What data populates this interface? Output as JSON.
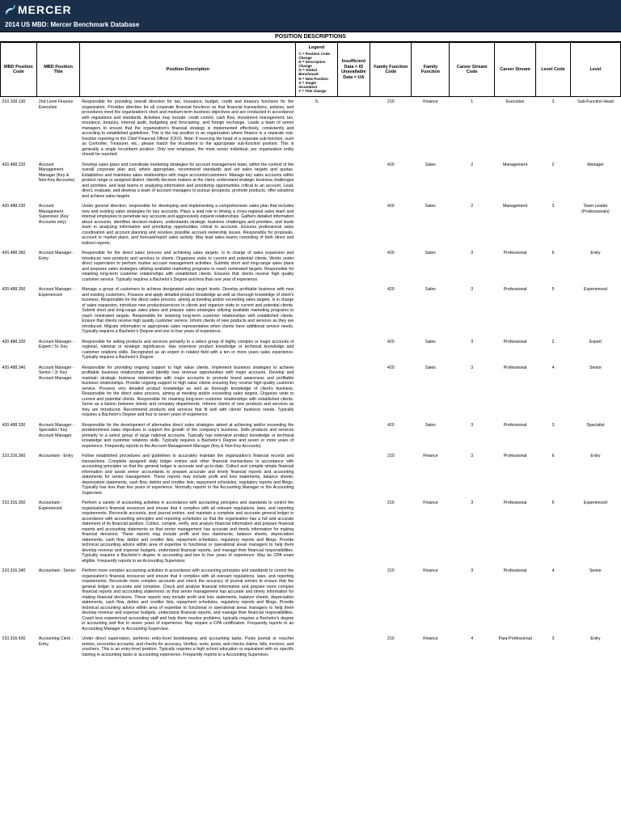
{
  "header": {
    "logo_text": "MERCER",
    "subtitle": "2014 US MBD: Mercer Benchmark Database"
  },
  "section_title": "POSITION DESCRIPTIONS",
  "columns": {
    "code": "MBD Position Code",
    "title": "MBD Position Title",
    "desc": "Position Description",
    "legend_title": "Legend",
    "legend_lines": [
      "C = Position Code Change",
      "D = Description Change",
      "G = Global Benchmark",
      "N = New Position",
      "S = Single Incumbent",
      "T = Title change"
    ],
    "insufficient": "Insufficient Data = ID Unavailable Data = UA",
    "fn_code": "Family Function Code",
    "fn": "Family Function",
    "stream_code": "Career Stream Code",
    "stream": "Career Stream",
    "level_code": "Level Code",
    "level": "Level"
  },
  "rows": [
    {
      "code": "210.100.130",
      "title": "2nd Level Finance Executive",
      "desc": "Responsible for providing overall direction for tax, insurance, budget, credit and treasury functions for the organization. Provides direction for all corporate financial functions so that financial transactions, policies, and procedures meet the organization's short and medium-term business objectives and are conducted in accordance with regulations and standards. Activities may include: credit control, cash flow, investment management, tax, insurance, treasury, internal audit, budgeting and forecasting, and foreign exchange. Leads a team of senior managers to ensure that the organization's financial strategy is implemented effectively, consistently and according to established guidelines. This is the top position in an organization where finance is a separate sub-function reporting to the Chief Financial Officer (CFO). Note: If sourcing the head of a separate sub-function, such as Controller, Treasurer, etc., please match the incumbent to the appropriate sub-function position. This is generally a single incumbent position. Only one employee, the most senior individual, per organization entity should be reported.",
      "legend": "S",
      "fn_code": "210",
      "fn": "Finance",
      "stream_code": "1",
      "stream": "Executive",
      "level_code": "3",
      "level": "Sub-Function Head"
    },
    {
      "code": "420.488.220",
      "title": "Account Management Manager (Key & Non-Key Accounts)",
      "desc": "Develop sales plans and coordinate marketing strategies for account management team, within the context of the overall corporate plan and, where appropriate, recommend standards and set sales targets and quotas. Establishes and maintains sales relationships with major accounts/customers. Manage key sales accounts within product range or assigned district. Identify decision makers at the client, understand strategic business challenges and priorities, and lead teams in analyzing information and prioritizing opportunities critical to an account. Lead, direct, evaluate, and develop a team of account managers to pursue prospects, promote products, offer solutions and achieve sales targets.",
      "legend": "",
      "fn_code": "420",
      "fn": "Sales",
      "stream_code": "2",
      "stream": "Management",
      "level_code": "2",
      "level": "Manager"
    },
    {
      "code": "420.488.230",
      "title": "Account Management Supervisor (Key Accounts only)",
      "desc": "Under general direction, responsible for developing and implementing a comprehensive sales plan that includes new and existing sales strategies for key accounts. Plays a lead role in driving a cross-regional sales team and internal employees to penetrate key accounts and aggressively expand relationships. Gathers detailed information about accounts, identifies decision-makers, understands strategic business challenges and priorities, and leads team in analyzing information and prioritizing opportunities critical to accounts. Ensures professional sales coordination and account planning and resolves possible account ownership issues. Responsible for proposals, account or market plans, and forecast/report sales activity. May lead sales teams consisting of both direct and indirect reports.",
      "legend": "",
      "fn_code": "420",
      "fn": "Sales",
      "stream_code": "2",
      "stream": "Management",
      "level_code": "3",
      "level": "Team Leader (Professionals)"
    },
    {
      "code": "420.488.360",
      "title": "Account Manager - Entry",
      "desc": "Responsible for the direct sales process and achieving sales targets. Is in charge of sales expansion and introduces new products and services to clients. Organizes visits to current and potential clients. Works under direct supervision to perform routine account management activities. Submits short and long-range sales plans and prepares sales strategies utilizing available marketing programs to reach nominated targets. Responsible for retaining long-term customer relationships with established clients. Ensures that clients receive high quality customer service. Typically requires a Bachelor's Degree and less than one year of experience.",
      "legend": "",
      "fn_code": "420",
      "fn": "Sales",
      "stream_code": "3",
      "stream": "Professional",
      "level_code": "6",
      "level": "Entry"
    },
    {
      "code": "420.488.350",
      "title": "Account Manager - Experienced",
      "desc": "Manage a group of customers to achieve designated sales target levels. Develop profitable business with new and existing customers. Possess and apply detailed product knowledge as well as thorough knowledge of client's business. Responsible for the direct sales process, aiming at meeting and/or exceeding sales targets. Is in charge of sales expansion, introduce new products/services to clients and organize visits to current and potential clients. Submit short and long-range sales plans and prepare sales strategies utilizing available marketing programs to reach nominated targets. Responsible for retaining long-term customer relationships with established clients. Ensure that clients receive high quality customer service. Inform clients of new products and services as they are introduced. Migrate information to appropriate sales representative when clients have additional service needs. Typically requires a Bachelor's Degree and one to four years of experience.",
      "legend": "",
      "fn_code": "420",
      "fn": "Sales",
      "stream_code": "3",
      "stream": "Professional",
      "level_code": "5",
      "level": "Experienced"
    },
    {
      "code": "420.488.320",
      "title": "Account Manager - Expert / Sr. Key",
      "desc": "Responsible for selling products and services primarily to a select group of highly complex or major accounts of regional, national or strategic significance. Has extensive product knowledge or technical knowledge and customer relations skills. Recognized as an expert in related field with a ten or more years sales experience. Typically requires a Bachelor's Degree.",
      "legend": "",
      "fn_code": "420",
      "fn": "Sales",
      "stream_code": "3",
      "stream": "Professional",
      "level_code": "2",
      "level": "Expert"
    },
    {
      "code": "420.488.340",
      "title": "Account Manager - Senior / Jr. Key Account Manager",
      "desc": "Responsible for providing ongoing support to high value clients. Implement business strategies to achieve profitable business relationships and identify new revenue opportunities with major accounts. Develop and maintain strategic business relationships with major accounts to promote brand awareness and profitable business relationships. Provide ongoing support to high value clients ensuring they receive high quality customer service. Possess very detailed product knowledge as well as thorough knowledge of client's business. Responsible for the direct sales process, aiming at meeting and/or exceeding sales targets. Organize visits to current and potential clients. Responsible for retaining long-term customer relationships with established clients. Serve as a liaison between clients and company departments. Informs clients of new products and services as they are introduced. Recommend products and services that fit well with clients' business needs. Typically requires a Bachelor's Degree and four to seven years of experience.",
      "legend": "",
      "fn_code": "420",
      "fn": "Sales",
      "stream_code": "3",
      "stream": "Professional",
      "level_code": "4",
      "level": "Senior"
    },
    {
      "code": "420.488.330",
      "title": "Account Manager - Specialist / Key Account Manager",
      "desc": "Responsible for the development of alternative direct sales strategies aimed at achieving and/or exceeding the predetermined sales objectives to support the growth of the company's business. Sells products and services primarily to a select group of large national accounts. Typically has extensive product knowledge or technical knowledge and customer relations skills. Typically requires a Bachelor's Degree and seven or more years of experience. Frequently reports to the Account Management Manager (Key & Non-Key Accounts).",
      "legend": "",
      "fn_code": "420",
      "fn": "Sales",
      "stream_code": "3",
      "stream": "Professional",
      "level_code": "3",
      "level": "Specialist"
    },
    {
      "code": "210.316.360",
      "title": "Accountant - Entry",
      "desc": "Follow established procedures and guidelines to accurately maintain the organization's financial records and transactions. Complete assigned daily ledger entries and other financial transactions in accordance with accounting principles so that the general ledger is accurate and up-to-date. Collect and compile simple financial information and assist senior accountants to prepare accurate and timely financial reports and accounting statements for senior management. These reports may include profit and loss statements, balance sheets, depreciation statements, cash flow, debtor and creditor lists, repayment schedules, regulatory reports and filings. Typically has less than two years of experience. Normally reports to the Accounting Manager or the Accounting Supervisor.",
      "legend": "",
      "fn_code": "210",
      "fn": "Finance",
      "stream_code": "3",
      "stream": "Professional",
      "level_code": "6",
      "level": "Entry"
    },
    {
      "code": "210.316.350",
      "title": "Accountant - Experienced",
      "desc": "Perform a variety of accounting activities in accordance with accounting principles and standards to control the organization's financial resources and ensure that it complies with all relevant regulations, laws, and reporting requirements. Reconcile accounts, post journal entries, and maintain a complete and accurate general ledger in accordance with accounting principles and reporting schedules so that the organization has a full and accurate statement of its financial position. Collect, compile, verify, and analyze financial information and prepare financial reports and accounting statements so that senior management has accurate and timely information for making financial decisions. These reports may include profit and loss statements, balance sheets, depreciation statements, cash flow, debtor and creditor lists, repayment schedules, regulatory reports and filings. Provide technical accounting advice within area of expertise to functional or operational areas managers to help them develop revenue and expense budgets, understand financial reports, and manage their financial responsibilities. Typically requires a Bachelor's degree in accounting and two to four years of experience. May be CPA exam eligible. Frequently reports to an Accounting Supervisor.",
      "legend": "",
      "fn_code": "210",
      "fn": "Finance",
      "stream_code": "3",
      "stream": "Professional",
      "level_code": "5",
      "level": "Experienced"
    },
    {
      "code": "210.316.340",
      "title": "Accountant - Senior",
      "desc": "Perform more complex accounting activities in accordance with accounting principles and standards to control the organization's financial resources and ensure that it complies with all relevant regulations, laws, and reporting requirements. Reconcile more complex accounts and check the accuracy of journal entries to ensure that the general ledger is accurate and complete. Check and analyse financial information and prepare more complex financial reports and accounting statements so that senior management has accurate and timely information for making financial decisions. These reports may include profit and loss statements, balance sheets, depreciation statements, cash flow, debtor and creditor lists, repayment schedules, regulatory reports and filings. Provide technical accounting advice within area of expertise to functional or operational areas managers to help them develop revenue and expense budgets, understand financial reports, and manage their financial responsibilities. Coach less experienced accounting staff and help them resolve problems. typically requires a Bachelor's degree in accounting and five to seven years of experience. May require a CPA certification. Frequently reports to an Accounting Manager or Accounting Supervisor.",
      "legend": "",
      "fn_code": "210",
      "fn": "Finance",
      "stream_code": "3",
      "stream": "Professional",
      "level_code": "4",
      "level": "Senior"
    },
    {
      "code": "210.316.430",
      "title": "Accounting Clerk - Entry",
      "desc": "Under direct supervision, performs entry-level bookkeeping and accounting tasks. Posts journal or voucher entries, reconciles accounts, and checks for accuracy. Verifies, sorts, posts, and checks claims, bills, invoices, and vouchers. This is an entry-level position. Typically requires a high school education or equivalent with no specific training in accounting tasks or accounting experience. Frequently reports to a Accounting Supervisor.",
      "legend": "",
      "fn_code": "210",
      "fn": "Finance",
      "stream_code": "4",
      "stream": "Para-Professional",
      "level_code": "3",
      "level": "Entry"
    }
  ]
}
